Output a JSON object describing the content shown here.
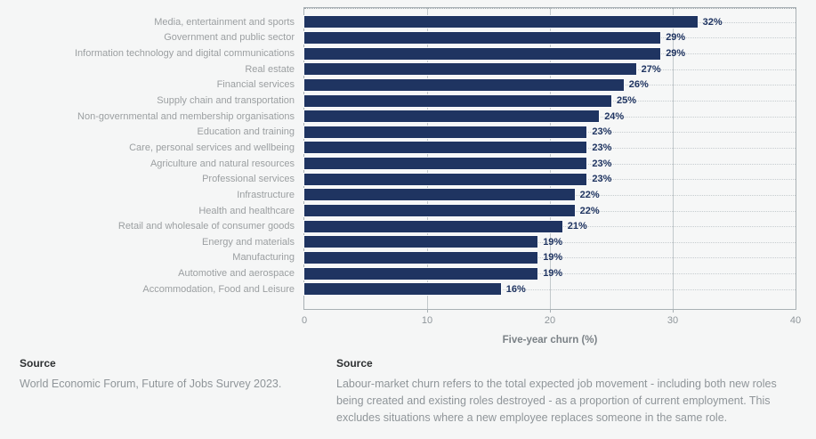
{
  "chart_data": {
    "type": "bar",
    "orientation": "horizontal",
    "title": "",
    "xlabel": "Five-year churn (%)",
    "ylabel": "",
    "xlim": [
      0,
      40
    ],
    "xticks": [
      0,
      10,
      20,
      30,
      40
    ],
    "grid": "solid vertical gridlines at 10/20/30; dotted horizontal leader line per row",
    "legend": "none",
    "value_suffix": "%",
    "categories": [
      "Media, entertainment and sports",
      "Government and public sector",
      "Information technology and digital communications",
      "Real estate",
      "Financial services",
      "Supply chain and transportation",
      "Non-governmental and membership organisations",
      "Education and training",
      "Care, personal services and wellbeing",
      "Agriculture and natural resources",
      "Professional services",
      "Infrastructure",
      "Health and healthcare",
      "Retail and wholesale of consumer goods",
      "Energy and materials",
      "Manufacturing",
      "Automotive and aerospace",
      "Accommodation, Food and Leisure"
    ],
    "values": [
      32,
      29,
      29,
      27,
      26,
      25,
      24,
      23,
      23,
      23,
      23,
      22,
      22,
      21,
      19,
      19,
      19,
      16
    ],
    "colors": {
      "bar": "#1f3461",
      "value_label": "#1f3461",
      "category_label": "#9b9fa1",
      "axis_tick_label": "#8f969b",
      "axis_title": "#7a8186",
      "gridline": "#c2c8cb",
      "background": "#f5f6f6"
    }
  },
  "sources": {
    "left": {
      "heading": "Source",
      "text": "World Economic Forum, Future of Jobs Survey 2023."
    },
    "right": {
      "heading": "Source",
      "text": "Labour-market churn refers to the total expected job movement - including both new roles being created and existing roles destroyed - as a proportion of current employment. This excludes situations where a new employee replaces someone in the same role."
    }
  }
}
